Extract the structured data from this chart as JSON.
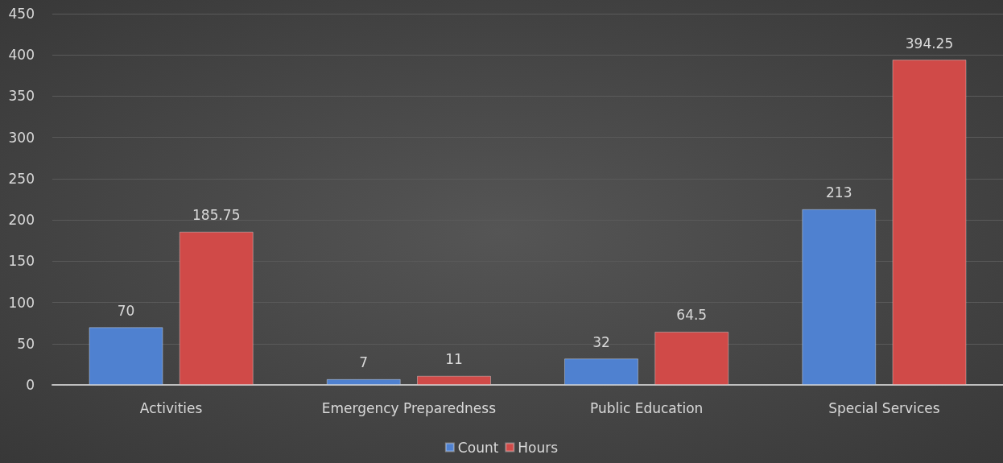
{
  "chart_data": {
    "type": "bar",
    "categories": [
      "Activities",
      "Emergency Preparedness",
      "Public Education",
      "Special Services"
    ],
    "series": [
      {
        "name": "Count",
        "color": "#4f81d0",
        "values": [
          70,
          7,
          32,
          213
        ]
      },
      {
        "name": "Hours",
        "color": "#d04a48",
        "values": [
          185.75,
          11,
          64.5,
          394.25
        ]
      }
    ],
    "ylim": [
      0,
      450
    ],
    "yticks": [
      0,
      50,
      100,
      150,
      200,
      250,
      300,
      350,
      400,
      450
    ],
    "grid": "y",
    "legend": "bottom",
    "data_labels": true
  }
}
